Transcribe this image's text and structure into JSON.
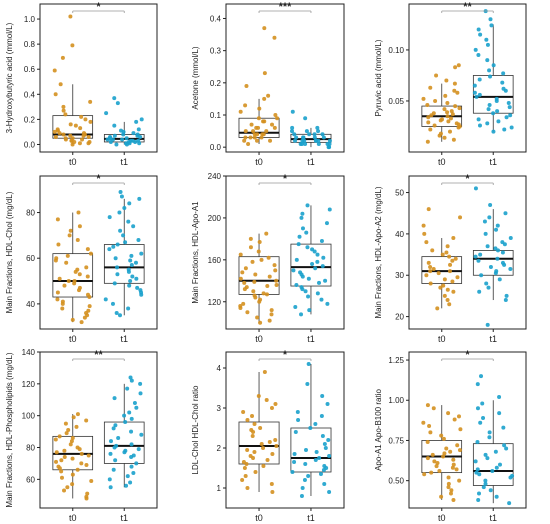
{
  "colors": {
    "t0": "#d4901f",
    "t1": "#1aa1cc",
    "axis": "#222222",
    "box": "#333333",
    "bracket": "#999999"
  },
  "chart_data": [
    {
      "type": "box",
      "ylabel": "3-Hydroxybutyric acid  (mmol/L)",
      "ylim": [
        -0.06,
        1.12
      ],
      "yticks": [
        0.0,
        0.2,
        0.4,
        0.6,
        0.8,
        1.0
      ],
      "ytick_labels": [
        "0.0",
        "0.2",
        "0.4",
        "0.6",
        "0.8",
        "1.0"
      ],
      "categories": [
        "t0",
        "t1"
      ],
      "significance": "*",
      "boxes": [
        {
          "group": "t0",
          "min": 0.0,
          "q1": 0.05,
          "median": 0.08,
          "q3": 0.23,
          "max": 0.48,
          "points": [
            1.02,
            0.79,
            0.69,
            0.59,
            0.48,
            0.4,
            0.34,
            0.3,
            0.27,
            0.24,
            0.22,
            0.2,
            0.18,
            0.16,
            0.15,
            0.13,
            0.12,
            0.11,
            0.1,
            0.09,
            0.09,
            0.08,
            0.08,
            0.07,
            0.07,
            0.06,
            0.06,
            0.05,
            0.05,
            0.04,
            0.04,
            0.03,
            0.03,
            0.02,
            0.02,
            0.01,
            0.01,
            0.0
          ]
        },
        {
          "group": "t1",
          "min": 0.0,
          "q1": 0.02,
          "median": 0.045,
          "q3": 0.08,
          "max": 0.18,
          "points": [
            0.37,
            0.33,
            0.25,
            0.2,
            0.18,
            0.15,
            0.12,
            0.11,
            0.1,
            0.09,
            0.08,
            0.08,
            0.07,
            0.07,
            0.06,
            0.06,
            0.05,
            0.05,
            0.05,
            0.04,
            0.04,
            0.04,
            0.03,
            0.03,
            0.03,
            0.02,
            0.02,
            0.02,
            0.01,
            0.01,
            0.01,
            0.0,
            0.0
          ]
        }
      ]
    },
    {
      "type": "box",
      "ylabel": "Acetone  (mmol/L)",
      "ylim": [
        -0.015,
        0.445
      ],
      "yticks": [
        0.0,
        0.1,
        0.2,
        0.3,
        0.4
      ],
      "ytick_labels": [
        "0.0",
        "0.1",
        "0.2",
        "0.3",
        "0.4"
      ],
      "categories": [
        "t0",
        "t1"
      ],
      "significance": "***",
      "boxes": [
        {
          "group": "t0",
          "min": 0.01,
          "q1": 0.03,
          "median": 0.045,
          "q3": 0.09,
          "max": 0.15,
          "points": [
            0.37,
            0.34,
            0.23,
            0.19,
            0.16,
            0.15,
            0.13,
            0.12,
            0.11,
            0.1,
            0.09,
            0.09,
            0.08,
            0.08,
            0.07,
            0.07,
            0.06,
            0.06,
            0.06,
            0.05,
            0.05,
            0.05,
            0.04,
            0.04,
            0.04,
            0.04,
            0.03,
            0.03,
            0.03,
            0.03,
            0.02,
            0.02,
            0.02,
            0.01
          ]
        },
        {
          "group": "t1",
          "min": 0.0,
          "q1": 0.015,
          "median": 0.025,
          "q3": 0.04,
          "max": 0.06,
          "points": [
            0.11,
            0.09,
            0.06,
            0.06,
            0.05,
            0.05,
            0.05,
            0.04,
            0.04,
            0.04,
            0.04,
            0.03,
            0.03,
            0.03,
            0.03,
            0.03,
            0.03,
            0.02,
            0.02,
            0.02,
            0.02,
            0.02,
            0.02,
            0.02,
            0.01,
            0.01,
            0.01,
            0.01,
            0.01,
            0.01,
            0.0,
            0.0
          ]
        }
      ]
    },
    {
      "type": "box",
      "ylabel": "Pyruvic acid  (mmol/L)",
      "ylim": [
        0.0,
        0.145
      ],
      "yticks": [
        0.05,
        0.1
      ],
      "ytick_labels": [
        "0.05",
        "0.10"
      ],
      "categories": [
        "t0",
        "t1"
      ],
      "significance": "**",
      "boxes": [
        {
          "group": "t0",
          "min": 0.01,
          "q1": 0.025,
          "median": 0.035,
          "q3": 0.045,
          "max": 0.067,
          "points": [
            0.085,
            0.083,
            0.075,
            0.07,
            0.067,
            0.063,
            0.06,
            0.058,
            0.055,
            0.052,
            0.05,
            0.048,
            0.046,
            0.045,
            0.043,
            0.042,
            0.04,
            0.039,
            0.038,
            0.037,
            0.036,
            0.035,
            0.034,
            0.033,
            0.032,
            0.031,
            0.03,
            0.029,
            0.028,
            0.027,
            0.026,
            0.025,
            0.024,
            0.022,
            0.02,
            0.018,
            0.016,
            0.014,
            0.012,
            0.01
          ]
        },
        {
          "group": "t1",
          "min": 0.02,
          "q1": 0.038,
          "median": 0.054,
          "q3": 0.075,
          "max": 0.125,
          "points": [
            0.138,
            0.13,
            0.124,
            0.12,
            0.115,
            0.11,
            0.105,
            0.1,
            0.095,
            0.09,
            0.085,
            0.08,
            0.077,
            0.074,
            0.071,
            0.068,
            0.065,
            0.062,
            0.06,
            0.058,
            0.056,
            0.054,
            0.052,
            0.05,
            0.048,
            0.046,
            0.044,
            0.042,
            0.04,
            0.038,
            0.036,
            0.034,
            0.032,
            0.03,
            0.028,
            0.026,
            0.024,
            0.022,
            0.02
          ]
        }
      ]
    },
    {
      "type": "box",
      "ylabel": "Main Fractions, HDL-Chol (mg/dL)",
      "ylim": [
        29,
        96
      ],
      "yticks": [
        40,
        60,
        80
      ],
      "ytick_labels": [
        "40",
        "60",
        "80"
      ],
      "categories": [
        "t0",
        "t1"
      ],
      "significance": "*",
      "boxes": [
        {
          "group": "t0",
          "min": 32,
          "q1": 43,
          "median": 50,
          "q3": 62,
          "max": 80,
          "points": [
            80,
            77,
            74,
            72,
            70,
            68,
            66,
            64,
            62,
            61,
            60,
            59,
            58,
            56,
            55,
            54,
            53,
            52,
            51,
            50,
            50,
            49,
            48,
            47,
            46,
            45,
            44,
            43,
            42,
            41,
            40,
            39,
            38,
            37,
            36,
            35,
            34,
            33,
            32
          ]
        },
        {
          "group": "t1",
          "min": 35,
          "q1": 49,
          "median": 56,
          "q3": 66,
          "max": 86,
          "points": [
            89,
            87,
            86,
            84,
            82,
            80,
            78,
            76,
            74,
            72,
            70,
            68,
            67,
            66,
            65,
            64,
            62,
            61,
            60,
            59,
            58,
            57,
            56,
            55,
            54,
            53,
            52,
            51,
            50,
            49,
            48,
            47,
            46,
            45,
            44,
            42,
            40,
            38,
            36,
            35
          ]
        }
      ]
    },
    {
      "type": "box",
      "ylabel": "Main Fractions, HDL-Apo-A1",
      "ylim": [
        94,
        240
      ],
      "yticks": [
        120,
        160,
        200,
        240
      ],
      "ytick_labels": [
        "120",
        "160",
        "200",
        "240"
      ],
      "categories": [
        "t0",
        "t1"
      ],
      "significance": "*",
      "boxes": [
        {
          "group": "t0",
          "min": 100,
          "q1": 127,
          "median": 140,
          "q3": 163,
          "max": 185,
          "points": [
            185,
            180,
            177,
            172,
            168,
            165,
            162,
            160,
            158,
            155,
            152,
            150,
            148,
            146,
            144,
            142,
            140,
            139,
            138,
            136,
            135,
            134,
            132,
            130,
            128,
            127,
            126,
            124,
            122,
            120,
            118,
            116,
            114,
            112,
            110,
            108,
            105,
            102,
            100
          ]
        },
        {
          "group": "t1",
          "min": 108,
          "q1": 135,
          "median": 153,
          "q3": 175,
          "max": 212,
          "points": [
            212,
            208,
            204,
            200,
            195,
            190,
            186,
            182,
            178,
            175,
            172,
            170,
            168,
            165,
            162,
            160,
            158,
            156,
            154,
            152,
            150,
            148,
            146,
            144,
            142,
            140,
            138,
            136,
            134,
            132,
            130,
            128,
            125,
            122,
            118,
            115,
            112,
            108
          ]
        }
      ]
    },
    {
      "type": "box",
      "ylabel": "Main Fractions, HDL-Apo-A2 (mg/dL)",
      "ylim": [
        17,
        54
      ],
      "yticks": [
        20,
        30,
        40,
        50
      ],
      "ytick_labels": [
        "20",
        "30",
        "40",
        "50"
      ],
      "categories": [
        "t0",
        "t1"
      ],
      "significance": "*",
      "boxes": [
        {
          "group": "t0",
          "min": 22,
          "q1": 28,
          "median": 31,
          "q3": 34.5,
          "max": 39,
          "points": [
            46,
            44,
            42,
            40,
            39,
            38,
            37,
            36,
            35.5,
            35,
            34.5,
            34,
            33.5,
            33,
            32.5,
            32,
            31.5,
            31,
            31,
            30.5,
            30,
            29.5,
            29,
            28.5,
            28,
            27.5,
            27,
            26.5,
            26,
            25,
            24,
            23,
            22
          ]
        },
        {
          "group": "t1",
          "min": 24,
          "q1": 30,
          "median": 34,
          "q3": 36,
          "max": 46,
          "points": [
            51,
            47,
            45,
            44,
            43,
            42,
            41,
            40,
            39,
            38,
            37.5,
            37,
            36.5,
            36,
            35.5,
            35,
            34.5,
            34,
            33.5,
            33,
            32.5,
            32,
            31.5,
            31,
            30.5,
            30,
            29,
            28,
            27,
            26,
            25,
            24,
            18
          ]
        }
      ]
    },
    {
      "type": "box",
      "ylabel": "Main Fractions, HDL-Phospholipids (mg/dL)",
      "ylim": [
        42,
        140
      ],
      "yticks": [
        60,
        80,
        100,
        120,
        140
      ],
      "ytick_labels": [
        "60",
        "80",
        "100",
        "120",
        "140"
      ],
      "categories": [
        "t0",
        "t1"
      ],
      "significance": "**",
      "boxes": [
        {
          "group": "t0",
          "min": 48,
          "q1": 66,
          "median": 76,
          "q3": 87,
          "max": 101,
          "points": [
            101,
            99,
            97,
            95,
            93,
            91,
            89,
            87,
            86,
            85,
            84,
            82,
            80,
            79,
            78,
            77,
            76,
            75,
            74,
            73,
            72,
            71,
            70,
            69,
            68,
            67,
            66,
            65,
            63,
            61,
            59,
            57,
            55,
            53,
            51,
            49,
            48
          ]
        },
        {
          "group": "t1",
          "min": 55,
          "q1": 70,
          "median": 81,
          "q3": 96,
          "max": 120,
          "points": [
            124,
            122,
            120,
            117,
            114,
            111,
            108,
            105,
            102,
            100,
            98,
            96,
            94,
            92,
            90,
            88,
            86,
            84,
            82,
            81,
            80,
            79,
            78,
            77,
            76,
            75,
            74,
            72,
            70,
            68,
            66,
            64,
            62,
            60,
            58,
            56,
            55
          ]
        }
      ]
    },
    {
      "type": "box",
      "ylabel": "LDL-Chol HDL-Chol ratio",
      "ylim": [
        0.5,
        4.4
      ],
      "yticks": [
        1,
        2,
        3,
        4
      ],
      "ytick_labels": [
        "1",
        "2",
        "3",
        "4"
      ],
      "categories": [
        "t0",
        "t1"
      ],
      "significance": "*",
      "boxes": [
        {
          "group": "t0",
          "min": 0.9,
          "q1": 1.6,
          "median": 2.05,
          "q3": 2.65,
          "max": 3.9,
          "points": [
            3.9,
            3.3,
            3.2,
            3.1,
            3.0,
            2.9,
            2.8,
            2.7,
            2.6,
            2.5,
            2.45,
            2.4,
            2.3,
            2.2,
            2.15,
            2.1,
            2.05,
            2.0,
            1.95,
            1.9,
            1.85,
            1.8,
            1.75,
            1.7,
            1.65,
            1.6,
            1.55,
            1.5,
            1.4,
            1.3,
            1.2,
            1.1,
            1.0,
            0.9
          ]
        },
        {
          "group": "t1",
          "min": 0.8,
          "q1": 1.4,
          "median": 1.75,
          "q3": 2.5,
          "max": 4.1,
          "points": [
            4.1,
            3.6,
            3.3,
            3.1,
            2.9,
            2.8,
            2.7,
            2.6,
            2.5,
            2.4,
            2.3,
            2.2,
            2.1,
            2.0,
            1.95,
            1.9,
            1.85,
            1.8,
            1.75,
            1.7,
            1.65,
            1.6,
            1.55,
            1.5,
            1.45,
            1.4,
            1.35,
            1.3,
            1.2,
            1.1,
            1.0,
            0.9,
            0.8
          ]
        }
      ]
    },
    {
      "type": "box",
      "ylabel": "Apo-A1 Apo-B100 ratio",
      "ylim": [
        0.33,
        1.3
      ],
      "yticks": [
        0.5,
        0.75,
        1.0,
        1.25
      ],
      "ytick_labels": [
        "0.50",
        "0.75",
        "1.00",
        "1.25"
      ],
      "categories": [
        "t0",
        "t1"
      ],
      "significance": "*",
      "boxes": [
        {
          "group": "t0",
          "min": 0.38,
          "q1": 0.55,
          "median": 0.65,
          "q3": 0.75,
          "max": 0.97,
          "points": [
            0.97,
            0.95,
            0.92,
            0.9,
            0.88,
            0.86,
            0.84,
            0.82,
            0.8,
            0.78,
            0.76,
            0.74,
            0.72,
            0.7,
            0.69,
            0.68,
            0.67,
            0.66,
            0.65,
            0.64,
            0.63,
            0.62,
            0.61,
            0.6,
            0.59,
            0.58,
            0.57,
            0.56,
            0.55,
            0.54,
            0.52,
            0.5,
            0.48,
            0.46,
            0.44,
            0.42,
            0.4,
            0.38
          ]
        },
        {
          "group": "t1",
          "min": 0.36,
          "q1": 0.47,
          "median": 0.56,
          "q3": 0.73,
          "max": 1.0,
          "points": [
            1.15,
            1.1,
            1.02,
            0.98,
            0.95,
            0.92,
            0.89,
            0.86,
            0.83,
            0.8,
            0.77,
            0.74,
            0.72,
            0.7,
            0.68,
            0.66,
            0.64,
            0.62,
            0.6,
            0.58,
            0.57,
            0.56,
            0.55,
            0.54,
            0.53,
            0.52,
            0.5,
            0.48,
            0.46,
            0.44,
            0.42,
            0.4,
            0.38,
            0.36
          ]
        }
      ]
    }
  ]
}
